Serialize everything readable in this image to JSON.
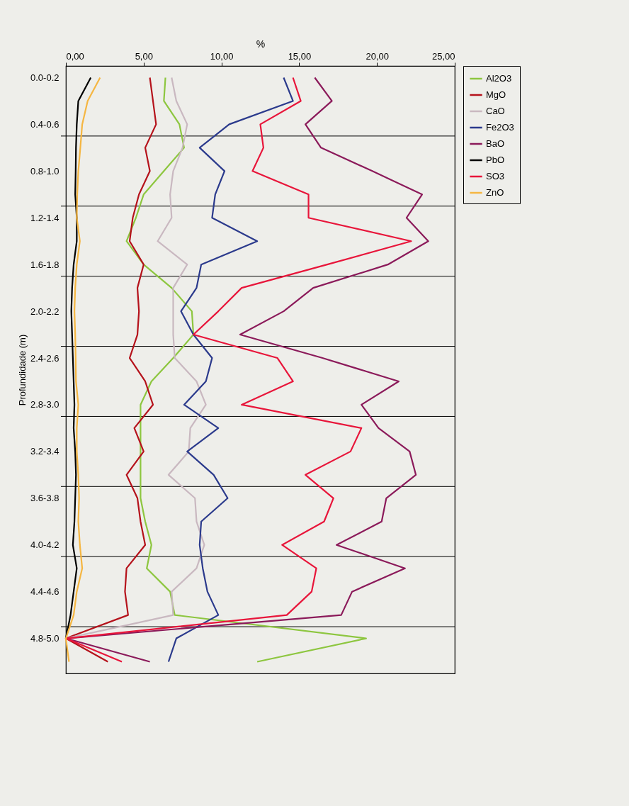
{
  "chart_data": {
    "type": "line",
    "xlabel": "%",
    "ylabel": "Profundidade (m)",
    "categories": [
      "0.0-0.2",
      null,
      "0.4-0.6",
      null,
      "0.8-1.0",
      null,
      "1.2-1.4",
      null,
      "1.6-1.8",
      null,
      "2.0-2.2",
      null,
      "2.4-2.6",
      null,
      "2.8-3.0",
      null,
      "3.2-3.4",
      null,
      "3.6-3.8",
      null,
      "4.0-4.2",
      null,
      "4.4-4.6",
      null,
      "4.8-5.0",
      null
    ],
    "xlim": [
      0,
      25
    ],
    "xticks": [
      {
        "value": 0,
        "label": "0,00"
      },
      {
        "value": 5,
        "label": "5,00"
      },
      {
        "value": 10,
        "label": "10,00"
      },
      {
        "value": 15,
        "label": "15,00"
      },
      {
        "value": 20,
        "label": "20,00"
      },
      {
        "value": 25,
        "label": "25,00"
      }
    ],
    "grid": "y",
    "legend": "right",
    "orientation": "horizontal",
    "marker": "none",
    "line_style": "solid",
    "series": [
      {
        "name": "Al2O3",
        "color": "#8dc63f",
        "values": [
          6.4,
          6.3,
          7.3,
          7.6,
          6.3,
          5.0,
          4.5,
          3.9,
          5.0,
          6.8,
          8.1,
          8.2,
          6.9,
          5.5,
          4.8,
          4.8,
          4.8,
          4.8,
          4.8,
          5.1,
          5.5,
          5.2,
          6.7,
          7.0,
          19.3,
          12.3
        ]
      },
      {
        "name": "MgO",
        "color": "#b5121b",
        "values": [
          5.4,
          5.6,
          5.8,
          5.1,
          5.4,
          4.7,
          4.3,
          4.1,
          5.0,
          4.6,
          4.7,
          4.6,
          4.1,
          5.1,
          5.6,
          4.4,
          5.0,
          3.9,
          4.6,
          4.8,
          5.1,
          3.9,
          3.8,
          4.0,
          0.0,
          2.7
        ]
      },
      {
        "name": "CaO",
        "color": "#c9b8c0",
        "values": [
          6.8,
          7.1,
          7.8,
          7.5,
          6.9,
          6.7,
          6.8,
          5.9,
          7.8,
          6.9,
          6.9,
          6.9,
          7.0,
          8.4,
          9.0,
          8.0,
          7.9,
          6.6,
          8.3,
          8.4,
          8.9,
          8.4,
          6.8,
          6.9,
          0.0,
          null
        ]
      },
      {
        "name": "Fe2O3",
        "color": "#2b3a8c",
        "values": [
          14.0,
          14.6,
          10.5,
          8.6,
          10.2,
          9.6,
          9.4,
          12.3,
          8.7,
          8.4,
          7.4,
          8.2,
          9.4,
          9.0,
          7.6,
          9.8,
          7.8,
          9.5,
          10.4,
          8.7,
          8.6,
          8.8,
          9.1,
          9.8,
          7.1,
          6.6
        ]
      },
      {
        "name": "BaO",
        "color": "#8b1a5a",
        "values": [
          16.0,
          17.1,
          15.4,
          16.4,
          19.7,
          22.9,
          21.9,
          23.3,
          20.7,
          15.9,
          14.0,
          11.2,
          16.5,
          21.4,
          19.0,
          20.1,
          22.1,
          22.5,
          20.6,
          20.3,
          17.4,
          21.8,
          18.4,
          17.7,
          0.0,
          5.4
        ]
      },
      {
        "name": "PbO",
        "color": "#000000",
        "values": [
          1.6,
          0.8,
          0.7,
          0.65,
          0.63,
          0.6,
          0.7,
          0.7,
          0.5,
          0.4,
          0.35,
          0.4,
          0.45,
          0.5,
          0.55,
          0.5,
          0.6,
          0.65,
          0.6,
          0.55,
          0.45,
          0.7,
          0.5,
          0.3,
          0.0,
          null
        ]
      },
      {
        "name": "SO3",
        "color": "#e8153a",
        "values": [
          14.6,
          15.1,
          12.5,
          12.7,
          12.0,
          15.6,
          15.6,
          22.2,
          16.8,
          11.3,
          9.8,
          8.2,
          13.6,
          14.6,
          11.3,
          19.0,
          18.3,
          15.4,
          17.2,
          16.6,
          13.9,
          16.1,
          15.8,
          14.2,
          0.0,
          3.6
        ]
      },
      {
        "name": "ZnO",
        "color": "#f5b642",
        "values": [
          2.2,
          1.4,
          1.05,
          0.93,
          0.8,
          0.73,
          0.7,
          0.9,
          0.7,
          0.6,
          0.55,
          0.6,
          0.63,
          0.65,
          0.8,
          0.7,
          0.7,
          0.8,
          0.85,
          0.8,
          0.9,
          1.05,
          0.7,
          0.5,
          0.0,
          0.2
        ]
      }
    ]
  }
}
